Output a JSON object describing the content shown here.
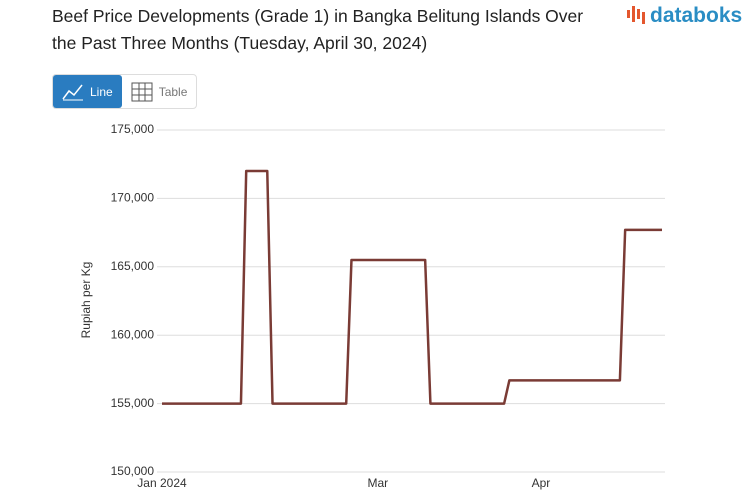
{
  "ui": {
    "brand": "databoks",
    "buttons": [
      "Line",
      "Table"
    ]
  },
  "chart_data": {
    "type": "line",
    "title": "Beef Price Developments (Grade 1) in Bangka Belitung Islands Over the Past Three Months (Tuesday, April 30, 2024)",
    "y_label": "Rupiah per Kg",
    "categories": [
      "Jan 2024",
      null,
      null,
      null,
      null,
      null,
      null,
      null,
      null,
      null,
      null,
      null,
      null,
      null,
      null,
      null,
      null,
      null,
      null,
      null,
      null,
      null,
      null,
      null,
      null,
      null,
      null,
      null,
      null,
      null,
      null,
      null,
      null,
      null,
      null,
      null,
      null,
      null,
      null,
      null,
      null,
      "Mar",
      null,
      null,
      null,
      null,
      null,
      null,
      null,
      null,
      null,
      null,
      null,
      null,
      null,
      null,
      null,
      null,
      null,
      null,
      null,
      null,
      null,
      null,
      null,
      null,
      null,
      null,
      null,
      null,
      null,
      null,
      "Apr",
      null,
      null,
      null,
      null,
      null,
      null,
      null,
      null,
      null,
      null,
      null,
      null,
      null,
      null,
      null,
      null,
      null,
      null,
      null,
      null,
      null,
      null,
      null
    ],
    "series": [
      {
        "name": "Rupiah per Kg",
        "color": "#7a3b35",
        "values": [
          155000,
          155000,
          155000,
          155000,
          155000,
          155000,
          155000,
          155000,
          155000,
          155000,
          155000,
          155000,
          155000,
          155000,
          155000,
          155000,
          172000,
          172000,
          172000,
          172000,
          172000,
          155000,
          155000,
          155000,
          155000,
          155000,
          155000,
          155000,
          155000,
          155000,
          155000,
          155000,
          155000,
          155000,
          155000,
          155000,
          165500,
          165500,
          165500,
          165500,
          165500,
          165500,
          165500,
          165500,
          165500,
          165500,
          165500,
          165500,
          165500,
          165500,
          165500,
          155000,
          155000,
          155000,
          155000,
          155000,
          155000,
          155000,
          155000,
          155000,
          155000,
          155000,
          155000,
          155000,
          155000,
          155000,
          156700,
          156700,
          156700,
          156700,
          156700,
          156700,
          156700,
          156700,
          156700,
          156700,
          156700,
          156700,
          156700,
          156700,
          156700,
          156700,
          156700,
          156700,
          156700,
          156700,
          156700,
          156700,
          167700,
          167700,
          167700,
          167700,
          167700,
          167700,
          167700,
          167700
        ]
      }
    ],
    "ylim": [
      150000,
      175000
    ],
    "yticks": [
      {
        "value": 150000,
        "label": "150,000"
      },
      {
        "value": 155000,
        "label": "155,000"
      },
      {
        "value": 160000,
        "label": "160,000"
      },
      {
        "value": 165000,
        "label": "165,000"
      },
      {
        "value": 170000,
        "label": "170,000"
      },
      {
        "value": 175000,
        "label": "175,000"
      }
    ],
    "grid": true
  }
}
